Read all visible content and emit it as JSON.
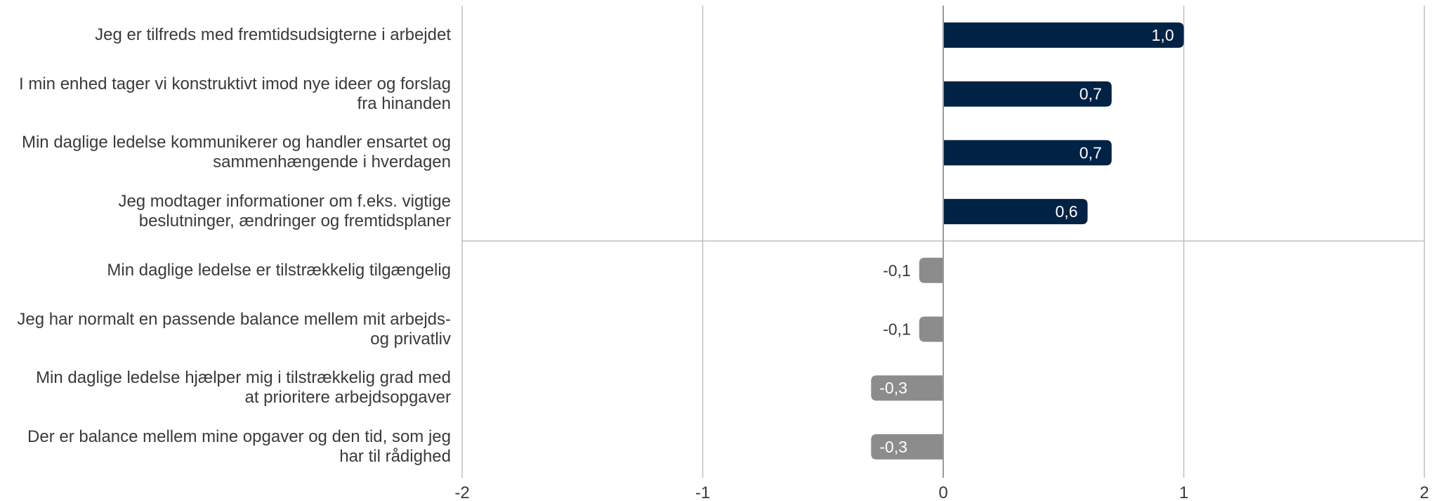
{
  "chart_data": {
    "type": "bar",
    "orientation": "horizontal",
    "categories": [
      "Jeg er tilfreds med fremtidsudsigterne i arbejdet",
      "I min enhed tager vi konstruktivt imod nye ideer og forslag fra hinanden",
      "Min daglige ledelse kommunikerer og handler ensartet og sammenhængende i hverdagen",
      "Jeg modtager informationer om f.eks. vigtige beslutninger, ændringer og fremtidsplaner",
      "Min daglige ledelse er tilstrækkelig tilgængelig",
      "Jeg har normalt en passende balance mellem mit arbejds- og privatliv",
      "Min daglige ledelse hjælper mig i tilstrækkelig grad med at prioritere arbejdsopgaver",
      "Der er balance mellem mine opgaver og den tid, som jeg har til rådighed"
    ],
    "category_lines": [
      [
        "Jeg er tilfreds med fremtidsudsigterne i arbejdet"
      ],
      [
        "I min enhed tager vi konstruktivt imod nye ideer og forslag",
        "fra hinanden"
      ],
      [
        "Min daglige ledelse kommunikerer og handler ensartet og",
        "sammenhængende i hverdagen"
      ],
      [
        "Jeg modtager informationer om f.eks. vigtige",
        "beslutninger, ændringer og fremtidsplaner"
      ],
      [
        "Min daglige ledelse er tilstrækkelig tilgængelig"
      ],
      [
        "Jeg har normalt en passende balance mellem mit arbejds-",
        "og privatliv"
      ],
      [
        "Min daglige ledelse hjælper mig i tilstrækkelig grad med",
        "at prioritere arbejdsopgaver"
      ],
      [
        "Der er balance mellem mine opgaver og den tid, som jeg",
        "har til rådighed"
      ]
    ],
    "values": [
      1.0,
      0.7,
      0.7,
      0.6,
      -0.1,
      -0.1,
      -0.3,
      -0.3
    ],
    "value_labels": [
      "1,0",
      "0,7",
      "0,7",
      "0,6",
      "-0,1",
      "-0,1",
      "-0,3",
      "-0,3"
    ],
    "xlim": [
      -2,
      2
    ],
    "x_ticks": [
      -2,
      -1,
      0,
      1,
      2
    ],
    "x_tick_labels": [
      "-2",
      "-1",
      "0",
      "1",
      "2"
    ],
    "colors": {
      "positive": "#002244",
      "negative": "#8c8c8c",
      "grid": "#bfbfbf",
      "label": "#3a3a3a"
    },
    "grid": true,
    "title": "",
    "xlabel": "",
    "ylabel": ""
  }
}
